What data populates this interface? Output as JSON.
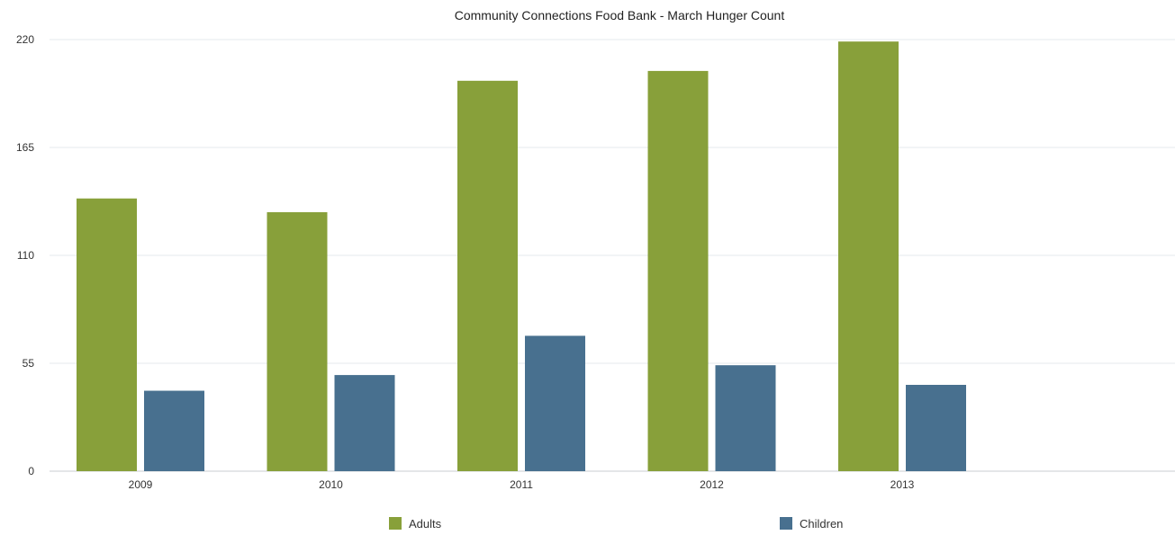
{
  "chart_data": {
    "type": "bar",
    "title": "Community Connections Food Bank - March Hunger Count",
    "xlabel": "",
    "ylabel": "",
    "categories": [
      "2009",
      "2010",
      "2011",
      "2012",
      "2013"
    ],
    "ylim": [
      0,
      220
    ],
    "yticks": [
      0,
      55,
      110,
      165,
      220
    ],
    "grid": true,
    "legend_position": "bottom",
    "series": [
      {
        "name": "Adults",
        "color": "#88A03A",
        "values": [
          139,
          132,
          199,
          204,
          219
        ]
      },
      {
        "name": "Children",
        "color": "#48708F",
        "values": [
          41,
          49,
          69,
          54,
          44
        ]
      }
    ]
  }
}
